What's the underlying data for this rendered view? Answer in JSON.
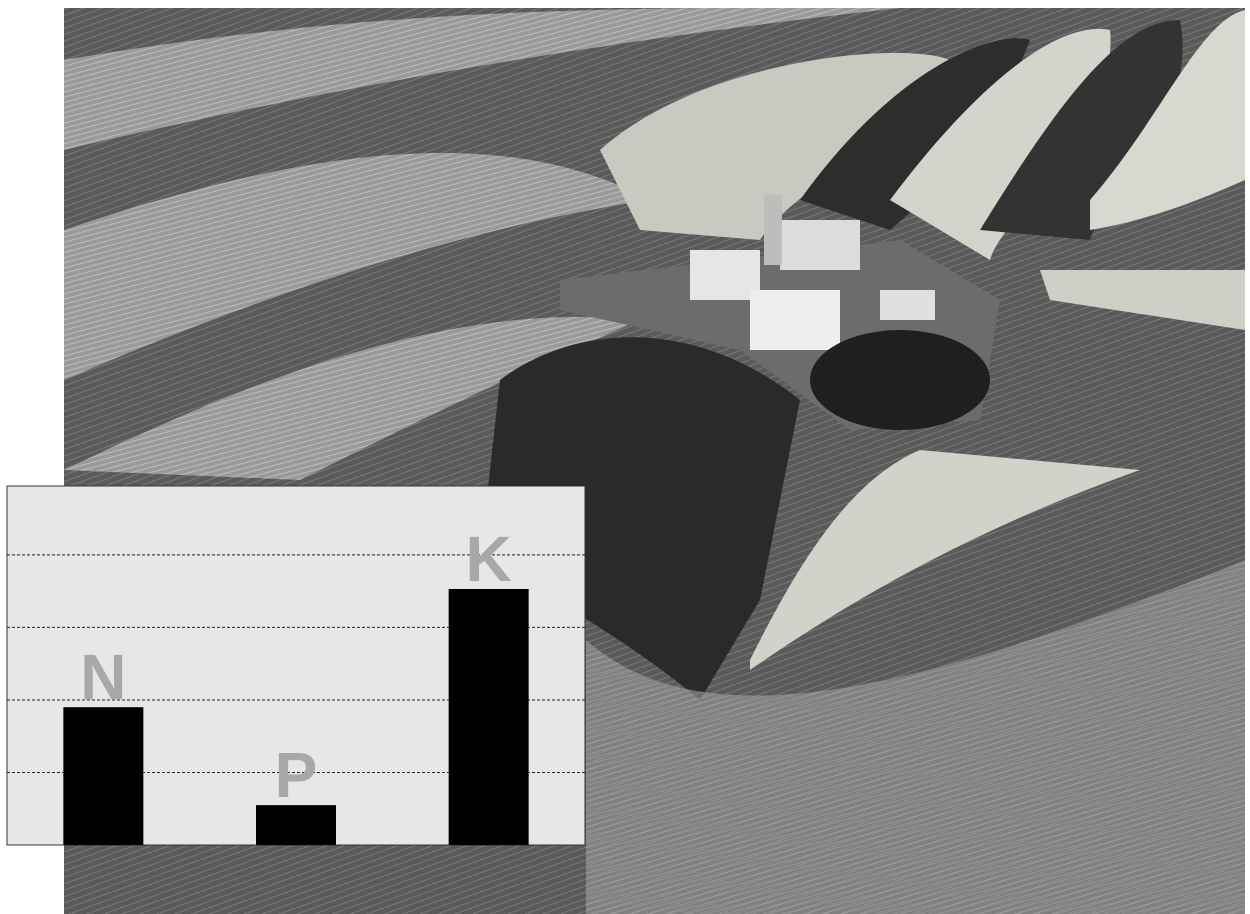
{
  "chart_data": {
    "type": "bar",
    "categories": [
      "N",
      "P",
      "K"
    ],
    "values": [
      1.9,
      0.55,
      3.53
    ],
    "color": "#000000",
    "ylim": [
      0,
      4.95
    ],
    "yticks": [
      1,
      2,
      3,
      4
    ],
    "grid": true
  }
}
